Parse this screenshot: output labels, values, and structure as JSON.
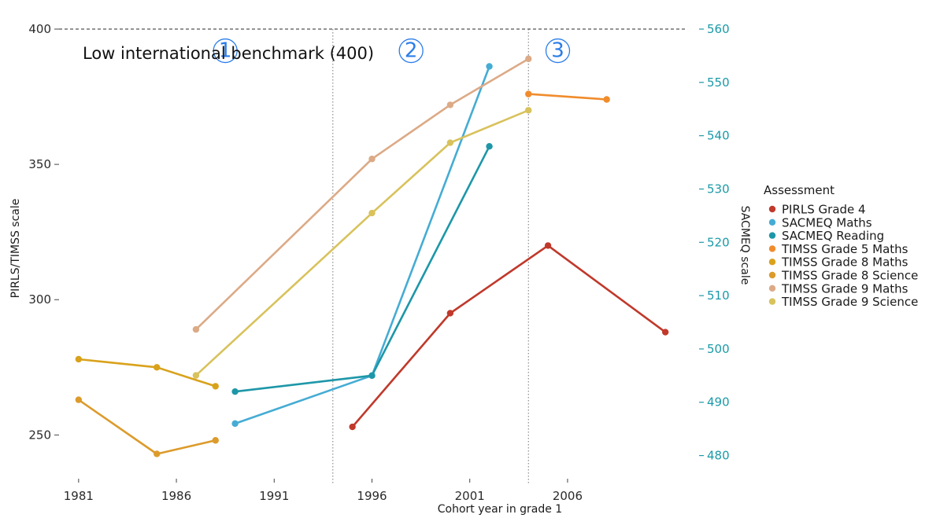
{
  "chart_data": {
    "type": "line",
    "xlabel": "Cohort year in grade 1",
    "ylabel_left": "PIRLS/TIMSS scale",
    "ylabel_right": "SACMEQ scale",
    "xlim": [
      1980,
      2012
    ],
    "ylim_left": [
      235,
      400
    ],
    "ylim_right": [
      476.25,
      560
    ],
    "x_ticks": [
      1981,
      1986,
      1991,
      1996,
      2001,
      2006
    ],
    "y_ticks_left": [
      250,
      300,
      350,
      400
    ],
    "y_ticks_right": [
      480,
      490,
      500,
      510,
      520,
      530,
      540,
      550,
      560
    ],
    "grid": false,
    "benchmark": {
      "value": 400,
      "label": "Low international benchmark (400)"
    },
    "period_lines": [
      1994,
      2004
    ],
    "period_labels": [
      {
        "label": "1",
        "x": 1988.5,
        "y": 392
      },
      {
        "label": "2",
        "x": 1998,
        "y": 392
      },
      {
        "label": "3",
        "x": 2005.5,
        "y": 392
      }
    ],
    "legend_title": "Assessment",
    "legend_position": "right",
    "series": [
      {
        "name": "PIRLS Grade 4",
        "color": "#c0392b",
        "axis": "left",
        "x": [
          1995,
          2000,
          2005,
          2011
        ],
        "y": [
          253,
          295,
          320,
          288
        ]
      },
      {
        "name": "SACMEQ Maths",
        "color": "#45acd4",
        "axis": "right",
        "x": [
          1989,
          1996,
          2002
        ],
        "y": [
          486,
          495,
          553
        ]
      },
      {
        "name": "SACMEQ Reading",
        "color": "#1d97a8",
        "axis": "right",
        "x": [
          1989,
          1996,
          2002
        ],
        "y": [
          492,
          495,
          538
        ]
      },
      {
        "name": "TIMSS Grade 5 Maths",
        "color": "#f08c2c",
        "axis": "left",
        "x": [
          2004,
          2008
        ],
        "y": [
          376,
          374
        ]
      },
      {
        "name": "TIMSS Grade 8 Maths",
        "color": "#d9a21b",
        "axis": "left",
        "x": [
          1981,
          1985,
          1988
        ],
        "y": [
          278,
          275,
          268
        ]
      },
      {
        "name": "TIMSS Grade 8 Science",
        "color": "#dc9b2b",
        "axis": "left",
        "x": [
          1981,
          1985,
          1988
        ],
        "y": [
          263,
          243,
          248
        ]
      },
      {
        "name": "TIMSS Grade 9 Maths",
        "color": "#dcaa86",
        "axis": "left",
        "x": [
          1987,
          1996,
          2000,
          2004
        ],
        "y": [
          289,
          352,
          372,
          389
        ]
      },
      {
        "name": "TIMSS Grade 9 Science",
        "color": "#d8c25c",
        "axis": "left",
        "x": [
          1987,
          1996,
          2000,
          2004
        ],
        "y": [
          272,
          332,
          358,
          370
        ]
      }
    ]
  }
}
